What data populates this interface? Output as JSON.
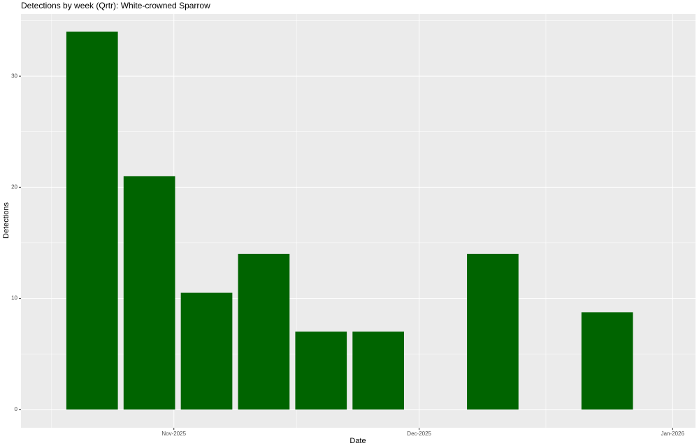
{
  "chart_data": {
    "type": "bar",
    "title": "Detections by week (Qrtr): White-crowned Sparrow",
    "x_label": "Date",
    "y_label": "Detections",
    "x": [
      -10,
      -3,
      4,
      11,
      18,
      25,
      39,
      53
    ],
    "values": [
      34,
      21,
      10.5,
      14,
      7,
      7,
      14,
      8.75
    ],
    "color": "#006400",
    "xlim": [
      -18.7,
      63.8
    ],
    "xticks": [
      {
        "value": 0,
        "label": "Nov-2025"
      },
      {
        "value": 30,
        "label": "Dec-2025"
      },
      {
        "value": 61,
        "label": "Jan-2026"
      }
    ],
    "ylim": [
      -1.65,
      35.6
    ],
    "yticks": [
      0,
      10,
      20,
      30
    ],
    "grid": true
  }
}
